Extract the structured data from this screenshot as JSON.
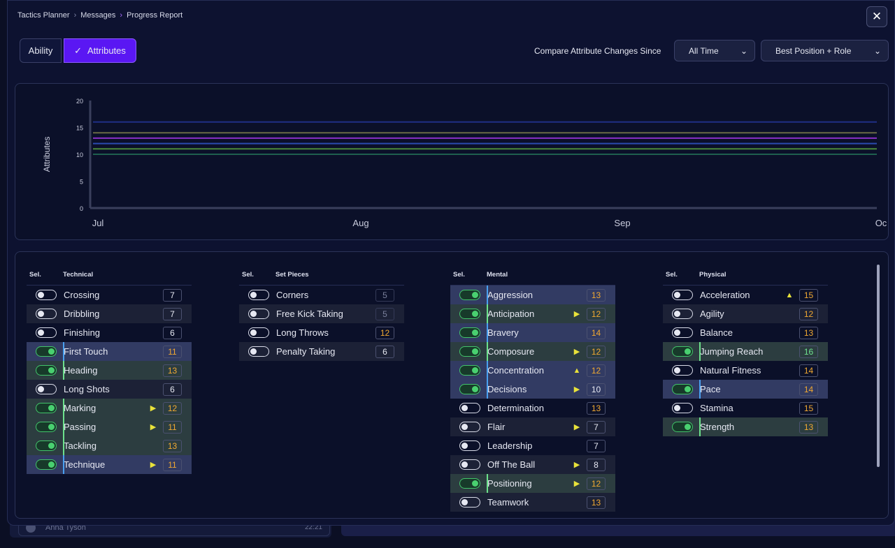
{
  "breadcrumb": [
    "Tactics Planner",
    "Messages",
    "Progress Report"
  ],
  "view_toggle": {
    "ability": "Ability",
    "attributes": "Attributes",
    "check": "✓"
  },
  "compare": {
    "label": "Compare Attribute Changes Since",
    "period": "All Time",
    "position": "Best Position + Role"
  },
  "chart_data": {
    "type": "line",
    "ylabel": "Attributes",
    "ylim": [
      0,
      20
    ],
    "yticks": [
      0,
      5,
      10,
      15,
      20
    ],
    "xticks": [
      "Jul",
      "Aug",
      "Sep",
      "Oc"
    ],
    "series": [
      {
        "color": "#1f2f86",
        "values": [
          16,
          16
        ]
      },
      {
        "color": "#6a6a45",
        "values": [
          14,
          14
        ]
      },
      {
        "color": "#8b2fc9",
        "values": [
          13,
          13
        ]
      },
      {
        "color": "#2a4bb0",
        "values": [
          12,
          12
        ]
      },
      {
        "color": "#4b8a3a",
        "values": [
          11,
          11
        ]
      },
      {
        "color": "#1e5f4e",
        "values": [
          10,
          10
        ]
      }
    ]
  },
  "columns": [
    {
      "sel": "Sel.",
      "title": "Technical",
      "rows": [
        {
          "name": "Crossing",
          "value": "7",
          "on": false,
          "style": "",
          "vcolor": "",
          "trend": ""
        },
        {
          "name": "Dribbling",
          "value": "7",
          "on": false,
          "style": "dark",
          "vcolor": "",
          "trend": ""
        },
        {
          "name": "Finishing",
          "value": "6",
          "on": false,
          "style": "",
          "vcolor": "",
          "trend": ""
        },
        {
          "name": "First Touch",
          "value": "11",
          "on": true,
          "style": "sel-blue",
          "vcolor": "orange",
          "trend": ""
        },
        {
          "name": "Heading",
          "value": "13",
          "on": true,
          "style": "sel-green",
          "vcolor": "orange",
          "trend": ""
        },
        {
          "name": "Long Shots",
          "value": "6",
          "on": false,
          "style": "dark",
          "vcolor": "",
          "trend": ""
        },
        {
          "name": "Marking",
          "value": "12",
          "on": true,
          "style": "sel-green",
          "vcolor": "orange",
          "trend": "▶"
        },
        {
          "name": "Passing",
          "value": "11",
          "on": true,
          "style": "sel-green",
          "vcolor": "orange",
          "trend": "▶"
        },
        {
          "name": "Tackling",
          "value": "13",
          "on": true,
          "style": "sel-green",
          "vcolor": "orange",
          "trend": ""
        },
        {
          "name": "Technique",
          "value": "11",
          "on": true,
          "style": "sel-blue",
          "vcolor": "orange",
          "trend": "▶"
        }
      ]
    },
    {
      "sel": "Sel.",
      "title": "Set Pieces",
      "rows": [
        {
          "name": "Corners",
          "value": "5",
          "on": false,
          "style": "",
          "vcolor": "dim",
          "trend": ""
        },
        {
          "name": "Free Kick Taking",
          "value": "5",
          "on": false,
          "style": "dark",
          "vcolor": "dim",
          "trend": ""
        },
        {
          "name": "Long Throws",
          "value": "12",
          "on": false,
          "style": "",
          "vcolor": "orange",
          "trend": ""
        },
        {
          "name": "Penalty Taking",
          "value": "6",
          "on": false,
          "style": "dark",
          "vcolor": "",
          "trend": ""
        }
      ]
    },
    {
      "sel": "Sel.",
      "title": "Mental",
      "rows": [
        {
          "name": "Aggression",
          "value": "13",
          "on": true,
          "style": "sel-blue",
          "vcolor": "orange",
          "trend": ""
        },
        {
          "name": "Anticipation",
          "value": "12",
          "on": true,
          "style": "sel-green",
          "vcolor": "orange",
          "trend": "▶"
        },
        {
          "name": "Bravery",
          "value": "14",
          "on": true,
          "style": "sel-blue",
          "vcolor": "orange",
          "trend": ""
        },
        {
          "name": "Composure",
          "value": "12",
          "on": true,
          "style": "sel-green",
          "vcolor": "orange",
          "trend": "▶"
        },
        {
          "name": "Concentration",
          "value": "12",
          "on": true,
          "style": "sel-blue",
          "vcolor": "orange",
          "trend": "▲"
        },
        {
          "name": "Decisions",
          "value": "10",
          "on": true,
          "style": "sel-blue",
          "vcolor": "",
          "trend": "▶"
        },
        {
          "name": "Determination",
          "value": "13",
          "on": false,
          "style": "",
          "vcolor": "orange",
          "trend": ""
        },
        {
          "name": "Flair",
          "value": "7",
          "on": false,
          "style": "dark",
          "vcolor": "",
          "trend": "▶"
        },
        {
          "name": "Leadership",
          "value": "7",
          "on": false,
          "style": "",
          "vcolor": "",
          "trend": ""
        },
        {
          "name": "Off The Ball",
          "value": "8",
          "on": false,
          "style": "dark",
          "vcolor": "",
          "trend": "▶"
        },
        {
          "name": "Positioning",
          "value": "12",
          "on": true,
          "style": "sel-green",
          "vcolor": "orange",
          "trend": "▶"
        },
        {
          "name": "Teamwork",
          "value": "13",
          "on": false,
          "style": "dark",
          "vcolor": "orange",
          "trend": ""
        }
      ]
    },
    {
      "sel": "Sel.",
      "title": "Physical",
      "rows": [
        {
          "name": "Acceleration",
          "value": "15",
          "on": false,
          "style": "",
          "vcolor": "orange",
          "trend": "▲"
        },
        {
          "name": "Agility",
          "value": "12",
          "on": false,
          "style": "dark",
          "vcolor": "orange",
          "trend": ""
        },
        {
          "name": "Balance",
          "value": "13",
          "on": false,
          "style": "",
          "vcolor": "orange",
          "trend": ""
        },
        {
          "name": "Jumping Reach",
          "value": "16",
          "on": true,
          "style": "sel-green",
          "vcolor": "green",
          "trend": ""
        },
        {
          "name": "Natural Fitness",
          "value": "14",
          "on": false,
          "style": "",
          "vcolor": "orange",
          "trend": ""
        },
        {
          "name": "Pace",
          "value": "14",
          "on": true,
          "style": "sel-blue",
          "vcolor": "orange",
          "trend": ""
        },
        {
          "name": "Stamina",
          "value": "15",
          "on": false,
          "style": "",
          "vcolor": "orange",
          "trend": ""
        },
        {
          "name": "Strength",
          "value": "13",
          "on": true,
          "style": "sel-green",
          "vcolor": "orange",
          "trend": ""
        }
      ]
    }
  ],
  "background_message": {
    "sender": "Anna Tyson",
    "time": "22:21"
  }
}
